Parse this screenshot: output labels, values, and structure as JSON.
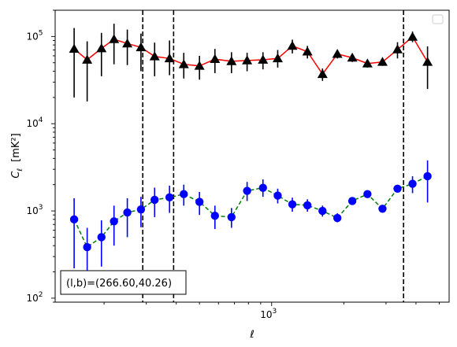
{
  "chart_data": {
    "type": "line",
    "xscale": "log",
    "yscale": "log",
    "xlabel": "ℓ",
    "ylabel": "C",
    "ylabel_sub": "ℓ",
    "ylabel_unit": "[mK²]",
    "xlim": [
      125,
      5500
    ],
    "ylim": [
      90,
      200000
    ],
    "x_tick_labels": [
      {
        "value": 1000,
        "base": "10",
        "exp": "3"
      }
    ],
    "y_tick_labels": [
      {
        "value": 100,
        "base": "10",
        "exp": "2"
      },
      {
        "value": 1000,
        "base": "10",
        "exp": "3"
      },
      {
        "value": 10000,
        "base": "10",
        "exp": "4"
      },
      {
        "value": 100000,
        "base": "10",
        "exp": "5"
      }
    ],
    "vlines": [
      290,
      390,
      3550
    ],
    "legend": "top-right",
    "annotation": "(l,b)=(266.60,40.26)",
    "series": [
      {
        "color": "#ff0000",
        "errcolor": "#000000",
        "marker": "triangle",
        "linestyle": "solid",
        "points": [
          {
            "x": 150,
            "y": 72000,
            "lo": 20000,
            "hi": 125000
          },
          {
            "x": 170,
            "y": 54000,
            "lo": 18000,
            "hi": 88000
          },
          {
            "x": 195,
            "y": 73000,
            "lo": 35000,
            "hi": 110000
          },
          {
            "x": 220,
            "y": 93000,
            "lo": 48000,
            "hi": 140000
          },
          {
            "x": 250,
            "y": 83000,
            "lo": 47000,
            "hi": 120000
          },
          {
            "x": 285,
            "y": 75000,
            "lo": 40000,
            "hi": 108000
          },
          {
            "x": 325,
            "y": 59000,
            "lo": 35000,
            "hi": 85000
          },
          {
            "x": 375,
            "y": 56000,
            "lo": 36000,
            "hi": 90000
          },
          {
            "x": 430,
            "y": 48000,
            "lo": 33000,
            "hi": 65000
          },
          {
            "x": 500,
            "y": 46000,
            "lo": 32000,
            "hi": 60000
          },
          {
            "x": 580,
            "y": 55000,
            "lo": 38000,
            "hi": 72000
          },
          {
            "x": 680,
            "y": 52000,
            "lo": 38000,
            "hi": 66000
          },
          {
            "x": 790,
            "y": 53000,
            "lo": 40000,
            "hi": 65000
          },
          {
            "x": 920,
            "y": 54000,
            "lo": 42000,
            "hi": 66000
          },
          {
            "x": 1060,
            "y": 56000,
            "lo": 44000,
            "hi": 70000
          },
          {
            "x": 1220,
            "y": 78000,
            "lo": 64000,
            "hi": 92000
          },
          {
            "x": 1410,
            "y": 67000,
            "lo": 56000,
            "hi": 78000
          },
          {
            "x": 1630,
            "y": 37000,
            "lo": 31000,
            "hi": 43000
          },
          {
            "x": 1880,
            "y": 63000,
            "lo": 56000,
            "hi": 70000
          },
          {
            "x": 2170,
            "y": 57000,
            "lo": 51000,
            "hi": 63000
          },
          {
            "x": 2510,
            "y": 49000,
            "lo": 44000,
            "hi": 54000
          },
          {
            "x": 2900,
            "y": 51000,
            "lo": 46000,
            "hi": 56000
          },
          {
            "x": 3350,
            "y": 71000,
            "lo": 56000,
            "hi": 86000
          },
          {
            "x": 3870,
            "y": 99000,
            "lo": 86000,
            "hi": 114000
          },
          {
            "x": 4470,
            "y": 51000,
            "lo": 25000,
            "hi": 77000
          }
        ]
      },
      {
        "color": "#008000",
        "errcolor": "#0000ff",
        "markercolor": "#0000ff",
        "marker": "circle",
        "linestyle": "dashed",
        "points": [
          {
            "x": 150,
            "y": 800,
            "lo": 220,
            "hi": 1400
          },
          {
            "x": 170,
            "y": 385,
            "lo": 150,
            "hi": 640
          },
          {
            "x": 195,
            "y": 500,
            "lo": 230,
            "hi": 780
          },
          {
            "x": 220,
            "y": 760,
            "lo": 400,
            "hi": 1150
          },
          {
            "x": 250,
            "y": 960,
            "lo": 500,
            "hi": 1400
          },
          {
            "x": 285,
            "y": 1040,
            "lo": 650,
            "hi": 1450
          },
          {
            "x": 325,
            "y": 1340,
            "lo": 850,
            "hi": 1850
          },
          {
            "x": 375,
            "y": 1430,
            "lo": 950,
            "hi": 1950
          },
          {
            "x": 430,
            "y": 1560,
            "lo": 1150,
            "hi": 2000
          },
          {
            "x": 500,
            "y": 1270,
            "lo": 900,
            "hi": 1650
          },
          {
            "x": 580,
            "y": 880,
            "lo": 620,
            "hi": 1150
          },
          {
            "x": 680,
            "y": 850,
            "lo": 640,
            "hi": 1080
          },
          {
            "x": 790,
            "y": 1700,
            "lo": 1300,
            "hi": 2150
          },
          {
            "x": 920,
            "y": 1840,
            "lo": 1450,
            "hi": 2300
          },
          {
            "x": 1060,
            "y": 1500,
            "lo": 1220,
            "hi": 1800
          },
          {
            "x": 1220,
            "y": 1190,
            "lo": 980,
            "hi": 1420
          },
          {
            "x": 1410,
            "y": 1160,
            "lo": 980,
            "hi": 1360
          },
          {
            "x": 1630,
            "y": 1000,
            "lo": 860,
            "hi": 1150
          },
          {
            "x": 1880,
            "y": 830,
            "lo": 740,
            "hi": 940
          },
          {
            "x": 2170,
            "y": 1300,
            "lo": 1180,
            "hi": 1430
          },
          {
            "x": 2510,
            "y": 1560,
            "lo": 1420,
            "hi": 1710
          },
          {
            "x": 2900,
            "y": 1060,
            "lo": 960,
            "hi": 1170
          },
          {
            "x": 3350,
            "y": 1800,
            "lo": 1650,
            "hi": 1960
          },
          {
            "x": 3870,
            "y": 2050,
            "lo": 1600,
            "hi": 2500
          },
          {
            "x": 4470,
            "y": 2500,
            "lo": 1250,
            "hi": 3800
          }
        ]
      }
    ]
  }
}
